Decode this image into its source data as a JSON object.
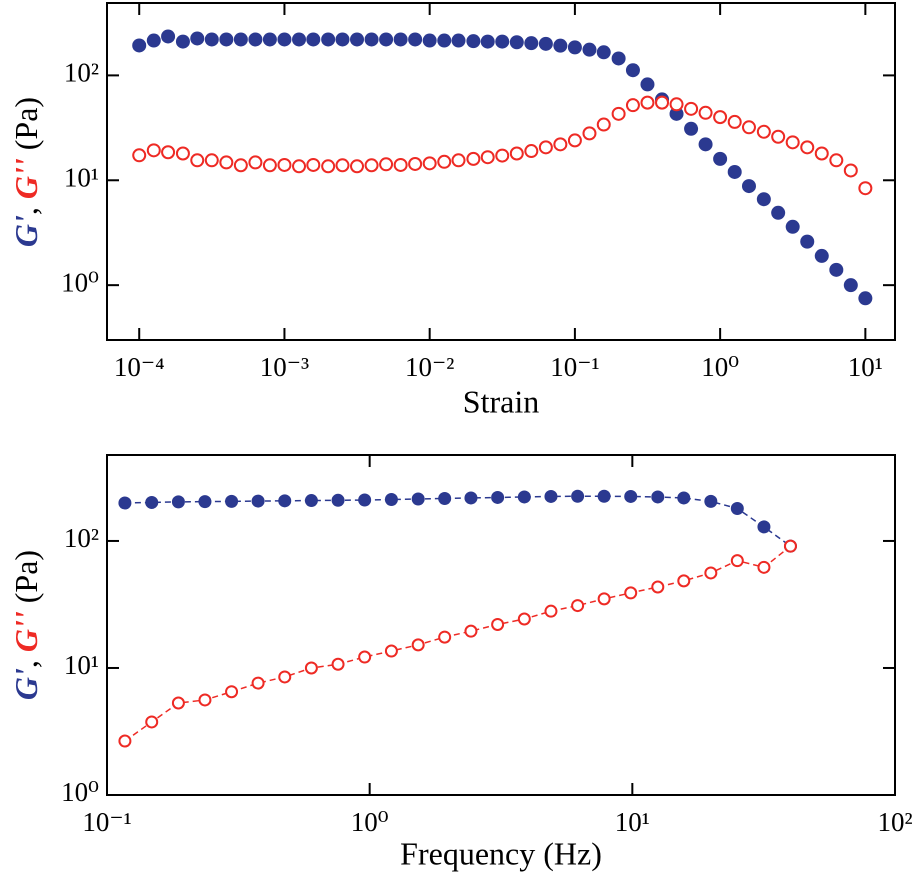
{
  "chart_data": [
    {
      "type": "scatter",
      "xlabel": "Strain",
      "ylabel": [
        {
          "text": "G'",
          "color": "#2b3990",
          "italic": true
        },
        {
          "text": ", ",
          "color": "#000000",
          "italic": false
        },
        {
          "text": "G''",
          "color": "#ee2a24",
          "italic": true
        },
        {
          "text": " (Pa)",
          "color": "#000000",
          "italic": false
        }
      ],
      "log_x": true,
      "log_y": true,
      "xlim": [
        6e-05,
        16
      ],
      "ylim": [
        0.3,
        490
      ],
      "xticks": [
        {
          "value": 0.0001,
          "label": "10⁻⁴"
        },
        {
          "value": 0.001,
          "label": "10⁻³"
        },
        {
          "value": 0.01,
          "label": "10⁻²"
        },
        {
          "value": 0.1,
          "label": "10⁻¹"
        },
        {
          "value": 1,
          "label": "10⁰"
        },
        {
          "value": 10,
          "label": "10¹"
        }
      ],
      "yticks": [
        {
          "value": 1,
          "label": "10⁰"
        },
        {
          "value": 10,
          "label": "10¹"
        },
        {
          "value": 100,
          "label": "10²"
        }
      ],
      "x": [
        0.0001,
        0.000126,
        0.000158,
        0.0002,
        0.000251,
        0.000316,
        0.000398,
        0.000501,
        0.000631,
        0.000794,
        0.001,
        0.00126,
        0.00158,
        0.002,
        0.00251,
        0.00316,
        0.00398,
        0.00501,
        0.00631,
        0.00794,
        0.01,
        0.0126,
        0.0158,
        0.02,
        0.0251,
        0.0316,
        0.0398,
        0.0501,
        0.0631,
        0.0794,
        0.1,
        0.126,
        0.158,
        0.2,
        0.251,
        0.316,
        0.398,
        0.501,
        0.631,
        0.794,
        1,
        1.26,
        1.58,
        2,
        2.51,
        3.16,
        3.98,
        5.01,
        6.31,
        7.94,
        10
      ],
      "series": [
        {
          "name": "G'",
          "color": "#2b3990",
          "marker": "filled",
          "line": "none",
          "values": [
            193,
            215,
            235,
            210,
            225,
            220,
            220,
            220,
            220,
            220,
            220,
            220,
            220,
            220,
            220,
            220,
            220,
            220,
            220,
            220,
            215,
            215,
            215,
            212,
            210,
            210,
            207,
            203,
            200,
            192,
            185,
            176,
            166,
            145,
            112,
            82,
            59,
            43,
            31,
            22,
            16,
            12,
            8.8,
            6.6,
            4.9,
            3.6,
            2.6,
            1.9,
            1.4,
            1.0,
            0.75
          ]
        },
        {
          "name": "G''",
          "color": "#ee2a24",
          "marker": "open",
          "line": "none",
          "values": [
            17.3,
            19.3,
            18.5,
            18,
            15.5,
            15.5,
            14.8,
            13.9,
            14.8,
            13.9,
            14,
            13.6,
            14,
            13.6,
            13.9,
            13.6,
            13.9,
            14.2,
            14,
            14.3,
            14.5,
            15,
            15.5,
            16,
            16.6,
            17.2,
            18,
            19,
            20.6,
            22,
            24,
            28,
            34,
            43,
            52,
            55,
            55,
            53,
            48,
            44,
            40,
            36,
            32,
            29,
            26,
            23,
            20.6,
            18,
            15.5,
            12.4,
            8.4
          ]
        }
      ]
    },
    {
      "type": "scatter",
      "xlabel": "Frequency (Hz)",
      "ylabel": [
        {
          "text": "G'",
          "color": "#2b3990",
          "italic": true
        },
        {
          "text": ", ",
          "color": "#000000",
          "italic": false
        },
        {
          "text": "G''",
          "color": "#ee2a24",
          "italic": true
        },
        {
          "text": " (Pa)",
          "color": "#000000",
          "italic": false
        }
      ],
      "log_x": true,
      "log_y": true,
      "xlim": [
        0.1,
        100
      ],
      "ylim": [
        1,
        475
      ],
      "xticks": [
        {
          "value": 0.1,
          "label": "10⁻¹"
        },
        {
          "value": 1,
          "label": "10⁰"
        },
        {
          "value": 10,
          "label": "10¹"
        },
        {
          "value": 100,
          "label": "10²"
        }
      ],
      "yticks": [
        {
          "value": 1,
          "label": "10⁰"
        },
        {
          "value": 10,
          "label": "10¹"
        },
        {
          "value": 100,
          "label": "10²"
        }
      ],
      "x": [
        0.117,
        0.148,
        0.187,
        0.236,
        0.298,
        0.376,
        0.475,
        0.6,
        0.758,
        0.957,
        1.21,
        1.53,
        1.93,
        2.43,
        3.07,
        3.88,
        4.9,
        6.19,
        7.81,
        9.86,
        12.5,
        15.7,
        19.9,
        25.1,
        31.7,
        40
      ],
      "series": [
        {
          "name": "G'",
          "color": "#2b3990",
          "marker": "filled",
          "line": "dashed",
          "values": [
            199,
            201,
            203,
            204,
            205,
            206,
            207,
            208,
            209,
            210,
            212,
            214,
            216,
            218,
            220,
            222,
            224,
            225,
            225,
            224,
            222,
            218,
            205,
            180,
            129,
            91
          ]
        },
        {
          "name": "G''",
          "color": "#ee2a24",
          "marker": "open",
          "line": "dashed",
          "values": [
            2.66,
            3.76,
            5.3,
            5.6,
            6.5,
            7.6,
            8.5,
            10,
            10.7,
            12.2,
            13.6,
            15.2,
            17.5,
            19.5,
            22,
            24.3,
            28,
            31,
            35,
            39,
            43.4,
            48.5,
            56,
            70,
            62,
            91
          ]
        }
      ]
    }
  ]
}
